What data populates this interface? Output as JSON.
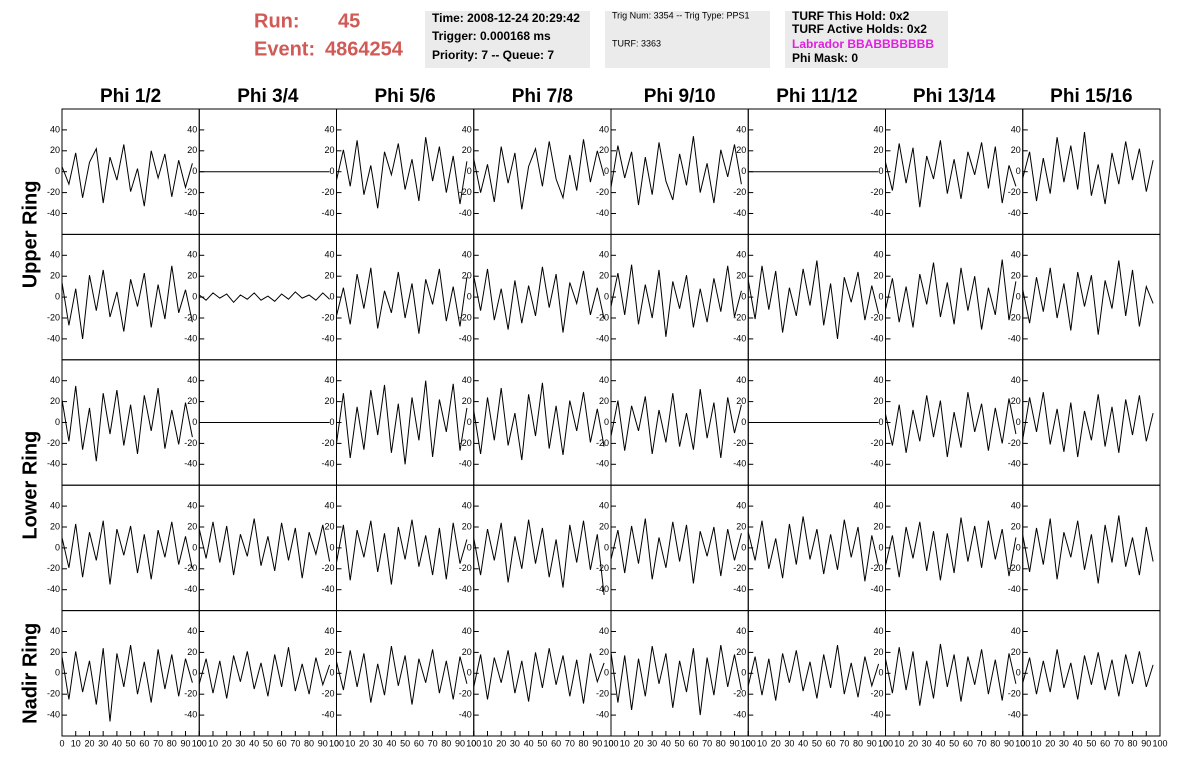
{
  "header": {
    "run_label": "Run:",
    "run": "45",
    "event_label": "Event:",
    "event": "4864254",
    "info1": [
      "Time: 2008-12-24 20:29:42",
      "Trigger: 0.000168 ms",
      "Priority: 7 -- Queue: 7"
    ],
    "info2": [
      "Trig Num: 3354 -- Trig Type: PPS1",
      "TURF: 3363"
    ],
    "info3": [
      "TURF This Hold: 0x2",
      "TURF Active Holds: 0x2",
      "Labrador BBABBBBBBB",
      "Phi Mask: 0"
    ]
  },
  "chart_data": {
    "type": "line",
    "color": "#000000",
    "column_labels": [
      "Phi 1/2",
      "Phi 3/4",
      "Phi 5/6",
      "Phi 7/8",
      "Phi 9/10",
      "Phi 11/12",
      "Phi 13/14",
      "Phi 15/16"
    ],
    "ring_labels": [
      "Upper Ring",
      "Lower Ring",
      "Nadir Ring"
    ],
    "x": [
      0,
      5,
      10,
      15,
      20,
      25,
      30,
      35,
      40,
      45,
      50,
      55,
      60,
      65,
      70,
      75,
      80,
      85,
      90,
      95
    ],
    "xlim": [
      0,
      100
    ],
    "xticks": [
      0,
      10,
      20,
      30,
      40,
      50,
      60,
      70,
      80,
      90,
      100
    ],
    "ylim": [
      -60,
      60
    ],
    "yticks": [
      -40,
      -20,
      0,
      20,
      40
    ],
    "panels": [
      [
        [
          5,
          -12,
          18,
          -25,
          9,
          22,
          -30,
          14,
          -8,
          26,
          -19,
          3,
          -33,
          20,
          -6,
          17,
          -24,
          11,
          -15,
          8
        ],
        [
          0,
          0,
          0,
          0,
          0,
          0,
          0,
          0,
          0,
          0,
          0,
          0,
          0,
          0,
          0,
          0,
          0,
          0,
          0,
          0
        ],
        [
          -8,
          21,
          -14,
          30,
          -22,
          6,
          -35,
          19,
          -3,
          27,
          -17,
          12,
          -28,
          33,
          -9,
          24,
          -20,
          15,
          -31,
          10
        ],
        [
          12,
          -20,
          7,
          -29,
          24,
          -11,
          18,
          -36,
          5,
          22,
          -14,
          29,
          -7,
          -25,
          16,
          -18,
          31,
          -10,
          20,
          -4
        ],
        [
          -15,
          25,
          -6,
          19,
          -32,
          14,
          -22,
          28,
          -9,
          -27,
          17,
          -13,
          34,
          -20,
          8,
          -30,
          21,
          -5,
          26,
          -12
        ],
        [
          0,
          0,
          0,
          0,
          0,
          0,
          0,
          0,
          0,
          0,
          0,
          0,
          0,
          0,
          0,
          0,
          0,
          0,
          0,
          0
        ],
        [
          9,
          -18,
          27,
          -11,
          23,
          -34,
          15,
          -7,
          30,
          -21,
          12,
          -26,
          19,
          -3,
          28,
          -16,
          24,
          -30,
          6,
          -14
        ],
        [
          -6,
          19,
          -28,
          13,
          -21,
          33,
          -10,
          25,
          -17,
          38,
          -23,
          7,
          -31,
          18,
          -12,
          29,
          -8,
          22,
          -19,
          11
        ]
      ],
      [
        [
          14,
          -27,
          8,
          -40,
          21,
          -13,
          26,
          -19,
          5,
          -33,
          17,
          -9,
          23,
          -29,
          12,
          -21,
          30,
          -15,
          7,
          -24
        ],
        [
          2,
          -3,
          4,
          -1,
          3,
          -5,
          2,
          -2,
          4,
          -3,
          1,
          -4,
          3,
          -2,
          5,
          -1,
          2,
          -3,
          4,
          -2
        ],
        [
          -18,
          9,
          -26,
          22,
          -11,
          28,
          -30,
          6,
          -15,
          24,
          -20,
          13,
          -35,
          17,
          -7,
          27,
          -23,
          10,
          -28,
          19
        ],
        [
          20,
          -13,
          27,
          -22,
          8,
          -31,
          16,
          -25,
          11,
          -18,
          29,
          -10,
          22,
          -34,
          14,
          -6,
          25,
          -17,
          9,
          -21
        ],
        [
          -9,
          23,
          -17,
          31,
          -26,
          12,
          -20,
          26,
          -38,
          15,
          -11,
          21,
          -29,
          8,
          -24,
          18,
          -14,
          30,
          -19,
          6
        ],
        [
          16,
          -21,
          30,
          -12,
          25,
          -34,
          9,
          -18,
          27,
          -8,
          35,
          -27,
          13,
          -40,
          19,
          -5,
          24,
          -22,
          11,
          -16
        ],
        [
          -12,
          18,
          -24,
          10,
          -29,
          22,
          -7,
          33,
          -19,
          14,
          -26,
          28,
          -13,
          20,
          -31,
          9,
          -17,
          36,
          -22,
          15
        ],
        [
          7,
          -25,
          19,
          -14,
          28,
          -20,
          13,
          -32,
          24,
          -9,
          21,
          -36,
          16,
          -11,
          35,
          -18,
          26,
          -28,
          10,
          -6
        ]
      ],
      [
        [
          22,
          -18,
          35,
          -26,
          14,
          -37,
          28,
          -11,
          31,
          -22,
          17,
          -30,
          26,
          -8,
          33,
          -25,
          12,
          -21,
          19,
          -14
        ],
        [
          0,
          0,
          0,
          0,
          0,
          0,
          0,
          0,
          0,
          0,
          0,
          0,
          0,
          0,
          0,
          0,
          0,
          0,
          0,
          0
        ],
        [
          -20,
          28,
          -34,
          15,
          -26,
          31,
          -12,
          36,
          -29,
          18,
          -40,
          24,
          -17,
          40,
          -33,
          22,
          -9,
          37,
          -27,
          14
        ],
        [
          11,
          -30,
          24,
          -17,
          33,
          -22,
          9,
          -36,
          27,
          -13,
          38,
          -25,
          16,
          -31,
          21,
          -8,
          29,
          -19,
          13,
          -23
        ],
        [
          -13,
          21,
          -27,
          16,
          -8,
          25,
          -30,
          12,
          -19,
          28,
          -23,
          9,
          -26,
          32,
          -15,
          19,
          -34,
          24,
          -10,
          17
        ],
        [
          0,
          0,
          0,
          0,
          0,
          0,
          0,
          0,
          0,
          0,
          0,
          0,
          0,
          0,
          0,
          0,
          0,
          0,
          0,
          0
        ],
        [
          8,
          -22,
          17,
          -29,
          12,
          -18,
          26,
          -14,
          21,
          -33,
          10,
          -24,
          29,
          -9,
          18,
          -27,
          14,
          -20,
          23,
          -11
        ],
        [
          -16,
          24,
          -9,
          29,
          -21,
          13,
          -28,
          19,
          -33,
          11,
          -17,
          27,
          -23,
          15,
          -29,
          22,
          -12,
          26,
          -18,
          9
        ]
      ],
      [
        [
          10,
          -19,
          23,
          -28,
          15,
          -12,
          26,
          -35,
          18,
          -7,
          21,
          -24,
          13,
          -30,
          17,
          -9,
          25,
          -16,
          11,
          -20
        ],
        [
          18,
          -10,
          25,
          -14,
          21,
          -26,
          13,
          -8,
          28,
          -17,
          11,
          -22,
          24,
          -12,
          19,
          -29,
          15,
          -6,
          22,
          -13
        ],
        [
          -14,
          22,
          -31,
          17,
          -9,
          26,
          -23,
          14,
          -35,
          20,
          -11,
          27,
          -18,
          12,
          -26,
          19,
          -30,
          24,
          -15,
          8
        ],
        [
          9,
          -26,
          18,
          -12,
          24,
          -33,
          11,
          -20,
          27,
          -15,
          19,
          -28,
          8,
          -38,
          22,
          -14,
          26,
          -21,
          13,
          -45
        ],
        [
          -11,
          17,
          -24,
          21,
          -15,
          28,
          -30,
          10,
          -19,
          25,
          -13,
          22,
          -34,
          16,
          -8,
          20,
          -27,
          18,
          -12,
          14
        ],
        [
          15,
          -12,
          26,
          -20,
          9,
          -29,
          23,
          -16,
          30,
          -11,
          18,
          -25,
          13,
          -21,
          27,
          -9,
          20,
          -32,
          12,
          -17
        ],
        [
          -17,
          12,
          -28,
          20,
          -10,
          25,
          -22,
          16,
          -31,
          14,
          -24,
          29,
          -13,
          21,
          -19,
          26,
          -11,
          18,
          -27,
          10
        ],
        [
          12,
          -23,
          19,
          -16,
          28,
          -30,
          15,
          -9,
          26,
          -21,
          13,
          -34,
          22,
          -14,
          31,
          -18,
          10,
          -26,
          20,
          -13
        ]
      ],
      [
        [
          16,
          -25,
          21,
          -18,
          12,
          -30,
          24,
          -46,
          19,
          -13,
          27,
          -20,
          11,
          -28,
          23,
          -15,
          18,
          -22,
          14,
          -9
        ],
        [
          -10,
          14,
          -19,
          12,
          -24,
          17,
          -8,
          21,
          -15,
          10,
          -22,
          18,
          -13,
          25,
          -17,
          9,
          -20,
          15,
          -11,
          8
        ],
        [
          11,
          -16,
          22,
          -13,
          19,
          -28,
          9,
          -21,
          26,
          -12,
          17,
          -30,
          14,
          -9,
          23,
          -19,
          12,
          -25,
          16,
          -10
        ],
        [
          -13,
          18,
          -25,
          15,
          -9,
          22,
          -19,
          12,
          -27,
          20,
          -14,
          24,
          -11,
          17,
          -22,
          13,
          -29,
          19,
          -8,
          10
        ],
        [
          20,
          -28,
          17,
          -35,
          14,
          -22,
          26,
          -10,
          19,
          -33,
          12,
          -18,
          24,
          -40,
          15,
          -21,
          27,
          -13,
          18,
          -16
        ],
        [
          -12,
          16,
          -21,
          14,
          -26,
          19,
          -9,
          22,
          -17,
          11,
          -24,
          18,
          -14,
          27,
          -20,
          10,
          -23,
          16,
          -12,
          9
        ],
        [
          14,
          -19,
          25,
          -16,
          21,
          -31,
          12,
          -24,
          28,
          -13,
          18,
          -27,
          16,
          -11,
          23,
          -20,
          13,
          -26,
          19,
          -10
        ],
        [
          -9,
          15,
          -20,
          12,
          -18,
          23,
          -14,
          10,
          -25,
          17,
          -11,
          20,
          -16,
          13,
          -22,
          18,
          -10,
          21,
          -13,
          8
        ]
      ]
    ]
  }
}
